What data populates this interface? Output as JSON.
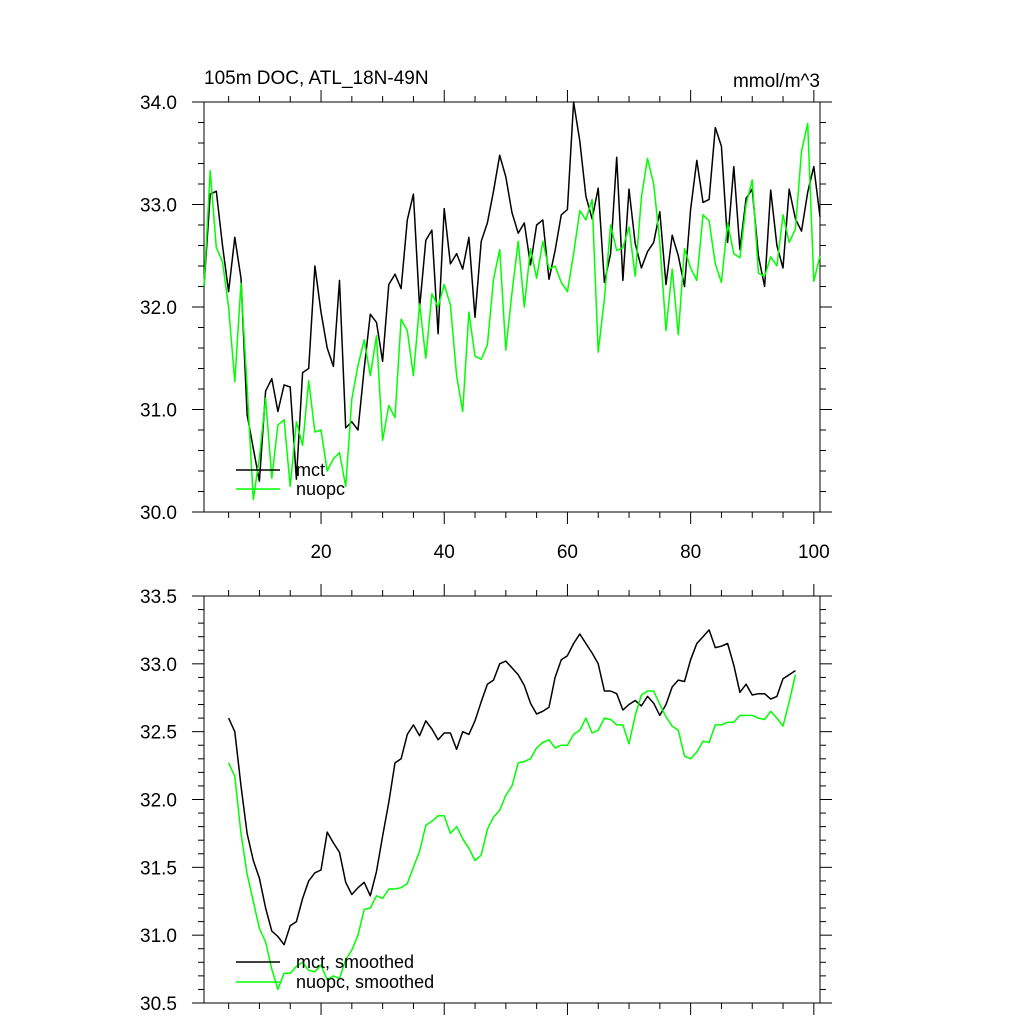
{
  "chart_data": [
    {
      "type": "line",
      "title": "105m DOC, ATL_18N-49N",
      "units": "mmol/m^3",
      "xlim": [
        1,
        101
      ],
      "ylim": [
        30.0,
        34.0
      ],
      "xticks": [
        20,
        40,
        60,
        80,
        100
      ],
      "xtick_labels": [
        "20",
        "40",
        "60",
        "80",
        "100"
      ],
      "yticks": [
        30.0,
        31.0,
        32.0,
        33.0,
        34.0
      ],
      "ytick_labels": [
        "30.0",
        "31.0",
        "32.0",
        "33.0",
        "34.0"
      ],
      "legend_position": "bottom-left",
      "colors": {
        "mct": "#000000",
        "nuopc": "#00ff00"
      },
      "x": [
        1,
        2,
        3,
        4,
        5,
        6,
        7,
        8,
        9,
        10,
        11,
        12,
        13,
        14,
        15,
        16,
        17,
        18,
        19,
        20,
        21,
        22,
        23,
        24,
        25,
        26,
        27,
        28,
        29,
        30,
        31,
        32,
        33,
        34,
        35,
        36,
        37,
        38,
        39,
        40,
        41,
        42,
        43,
        44,
        45,
        46,
        47,
        48,
        49,
        50,
        51,
        52,
        53,
        54,
        55,
        56,
        57,
        58,
        59,
        60,
        61,
        62,
        63,
        64,
        65,
        66,
        67,
        68,
        69,
        70,
        71,
        72,
        73,
        74,
        75,
        76,
        77,
        78,
        79,
        80,
        81,
        82,
        83,
        84,
        85,
        86,
        87,
        88,
        89,
        90,
        91,
        92,
        93,
        94,
        95,
        96,
        97,
        98,
        99,
        100,
        101
      ],
      "series": [
        {
          "name": "mct",
          "values": [
            32.2,
            33.1,
            33.13,
            32.6,
            32.15,
            32.68,
            32.28,
            30.95,
            30.62,
            30.3,
            31.18,
            31.3,
            30.98,
            31.24,
            31.22,
            30.32,
            31.36,
            31.4,
            32.4,
            31.95,
            31.6,
            31.42,
            32.26,
            30.82,
            30.88,
            30.8,
            31.4,
            31.93,
            31.85,
            31.47,
            32.22,
            32.32,
            32.18,
            32.85,
            33.1,
            31.99,
            32.65,
            32.75,
            31.74,
            32.96,
            32.42,
            32.52,
            32.37,
            32.68,
            31.9,
            32.64,
            32.82,
            33.13,
            33.48,
            33.27,
            32.92,
            32.72,
            32.82,
            32.41,
            32.8,
            32.85,
            32.27,
            32.55,
            32.9,
            32.95,
            34.0,
            33.62,
            33.08,
            32.86,
            33.16,
            32.24,
            32.52,
            33.46,
            32.26,
            33.15,
            32.62,
            32.38,
            32.54,
            32.63,
            32.93,
            32.22,
            32.7,
            32.5,
            32.2,
            32.95,
            33.43,
            33.02,
            33.05,
            33.75,
            33.57,
            32.63,
            33.37,
            32.56,
            33.06,
            33.15,
            32.5,
            32.2,
            33.14,
            32.6,
            32.38,
            33.15,
            32.86,
            32.74,
            33.12,
            33.37,
            32.88
          ]
        },
        {
          "name": "nuopc",
          "values": [
            32.2,
            33.33,
            32.58,
            32.44,
            32.0,
            31.27,
            32.23,
            31.22,
            30.12,
            30.53,
            31.11,
            30.33,
            30.85,
            30.9,
            30.25,
            30.88,
            30.65,
            31.28,
            30.78,
            30.8,
            30.4,
            30.52,
            30.58,
            30.25,
            31.1,
            31.43,
            31.68,
            31.33,
            31.72,
            30.7,
            31.04,
            30.92,
            31.88,
            31.77,
            31.33,
            32.03,
            31.5,
            32.13,
            32.0,
            32.22,
            32.02,
            31.33,
            30.98,
            31.95,
            31.52,
            31.49,
            31.63,
            32.27,
            32.56,
            31.58,
            32.14,
            32.64,
            32.0,
            32.57,
            32.28,
            32.64,
            32.37,
            32.4,
            32.24,
            32.15,
            32.52,
            32.94,
            32.85,
            33.05,
            31.56,
            32.08,
            32.8,
            32.55,
            32.58,
            32.78,
            32.3,
            33.07,
            33.45,
            33.2,
            32.63,
            31.77,
            32.37,
            31.73,
            32.57,
            32.38,
            32.26,
            32.9,
            32.84,
            32.42,
            32.24,
            32.82,
            32.52,
            32.48,
            33.0,
            33.24,
            32.33,
            32.3,
            32.49,
            32.4,
            32.9,
            32.63,
            32.76,
            33.52,
            33.79,
            32.25,
            32.5
          ]
        }
      ],
      "legend": [
        {
          "name": "mct",
          "label": "mct"
        },
        {
          "name": "nuopc",
          "label": "nuopc"
        }
      ]
    },
    {
      "type": "line",
      "title": "",
      "xlim": [
        1,
        101
      ],
      "ylim": [
        30.5,
        33.5
      ],
      "xticks": [
        20,
        40,
        60,
        80,
        100
      ],
      "yticks": [
        30.5,
        31.0,
        31.5,
        32.0,
        32.5,
        33.0,
        33.5
      ],
      "ytick_labels": [
        "30.5",
        "31.0",
        "31.5",
        "32.0",
        "32.5",
        "33.0",
        "33.5"
      ],
      "legend_position": "bottom-left",
      "colors": {
        "mct, smoothed": "#000000",
        "nuopc, smoothed": "#00ff00"
      },
      "x": [
        5,
        6,
        7,
        8,
        9,
        10,
        11,
        12,
        13,
        14,
        15,
        16,
        17,
        18,
        19,
        20,
        21,
        22,
        23,
        24,
        25,
        26,
        27,
        28,
        29,
        30,
        31,
        32,
        33,
        34,
        35,
        36,
        37,
        38,
        39,
        40,
        41,
        42,
        43,
        44,
        45,
        46,
        47,
        48,
        49,
        50,
        51,
        52,
        53,
        54,
        55,
        56,
        57,
        58,
        59,
        60,
        61,
        62,
        63,
        64,
        65,
        66,
        67,
        68,
        69,
        70,
        71,
        72,
        73,
        74,
        75,
        76,
        77,
        78,
        79,
        80,
        81,
        82,
        83,
        84,
        85,
        86,
        87,
        88,
        89,
        90,
        91,
        92,
        93,
        94,
        95,
        96,
        97
      ],
      "series": [
        {
          "name": "mct, smoothed",
          "values": [
            32.6,
            32.5,
            32.1,
            31.75,
            31.55,
            31.42,
            31.2,
            31.03,
            30.99,
            30.93,
            31.07,
            31.1,
            31.27,
            31.4,
            31.46,
            31.48,
            31.76,
            31.68,
            31.61,
            31.39,
            31.3,
            31.35,
            31.39,
            31.29,
            31.47,
            31.73,
            31.98,
            32.27,
            32.3,
            32.48,
            32.55,
            32.47,
            32.58,
            32.52,
            32.44,
            32.49,
            32.49,
            32.37,
            32.5,
            32.48,
            32.58,
            32.72,
            32.85,
            32.88,
            33.0,
            33.02,
            32.97,
            32.92,
            32.84,
            32.71,
            32.63,
            32.65,
            32.68,
            32.9,
            33.03,
            33.06,
            33.15,
            33.22,
            33.15,
            33.08,
            33.0,
            32.8,
            32.8,
            32.78,
            32.66,
            32.7,
            32.73,
            32.69,
            32.76,
            32.71,
            32.62,
            32.7,
            32.83,
            32.88,
            32.87,
            33.03,
            33.15,
            33.2,
            33.25,
            33.12,
            33.13,
            33.15,
            32.99,
            32.79,
            32.85,
            32.77,
            32.78,
            32.78,
            32.74,
            32.76,
            32.89,
            32.92,
            32.95
          ]
        },
        {
          "name": "nuopc, smoothed",
          "values": [
            32.27,
            32.17,
            31.75,
            31.45,
            31.25,
            31.05,
            30.95,
            30.75,
            30.6,
            30.72,
            30.72,
            30.77,
            30.8,
            30.74,
            30.73,
            30.78,
            30.67,
            30.7,
            30.68,
            30.82,
            30.89,
            31.0,
            31.19,
            31.2,
            31.29,
            31.27,
            31.34,
            31.34,
            31.35,
            31.38,
            31.5,
            31.62,
            31.81,
            31.84,
            31.88,
            31.88,
            31.75,
            31.8,
            31.71,
            31.64,
            31.55,
            31.59,
            31.78,
            31.87,
            31.92,
            32.03,
            32.1,
            32.27,
            32.28,
            32.3,
            32.38,
            32.42,
            32.44,
            32.38,
            32.4,
            32.4,
            32.48,
            32.51,
            32.6,
            32.49,
            32.51,
            32.6,
            32.59,
            32.55,
            32.55,
            32.41,
            32.62,
            32.77,
            32.8,
            32.8,
            32.7,
            32.61,
            32.54,
            32.51,
            32.32,
            32.3,
            32.35,
            32.43,
            32.42,
            32.55,
            32.55,
            32.57,
            32.57,
            32.62,
            32.62,
            32.62,
            32.6,
            32.59,
            32.65,
            32.6,
            32.54,
            32.72,
            32.92
          ]
        }
      ],
      "legend": [
        {
          "name": "mct, smoothed",
          "label": "mct, smoothed"
        },
        {
          "name": "nuopc, smoothed",
          "label": "nuopc, smoothed"
        }
      ]
    }
  ]
}
